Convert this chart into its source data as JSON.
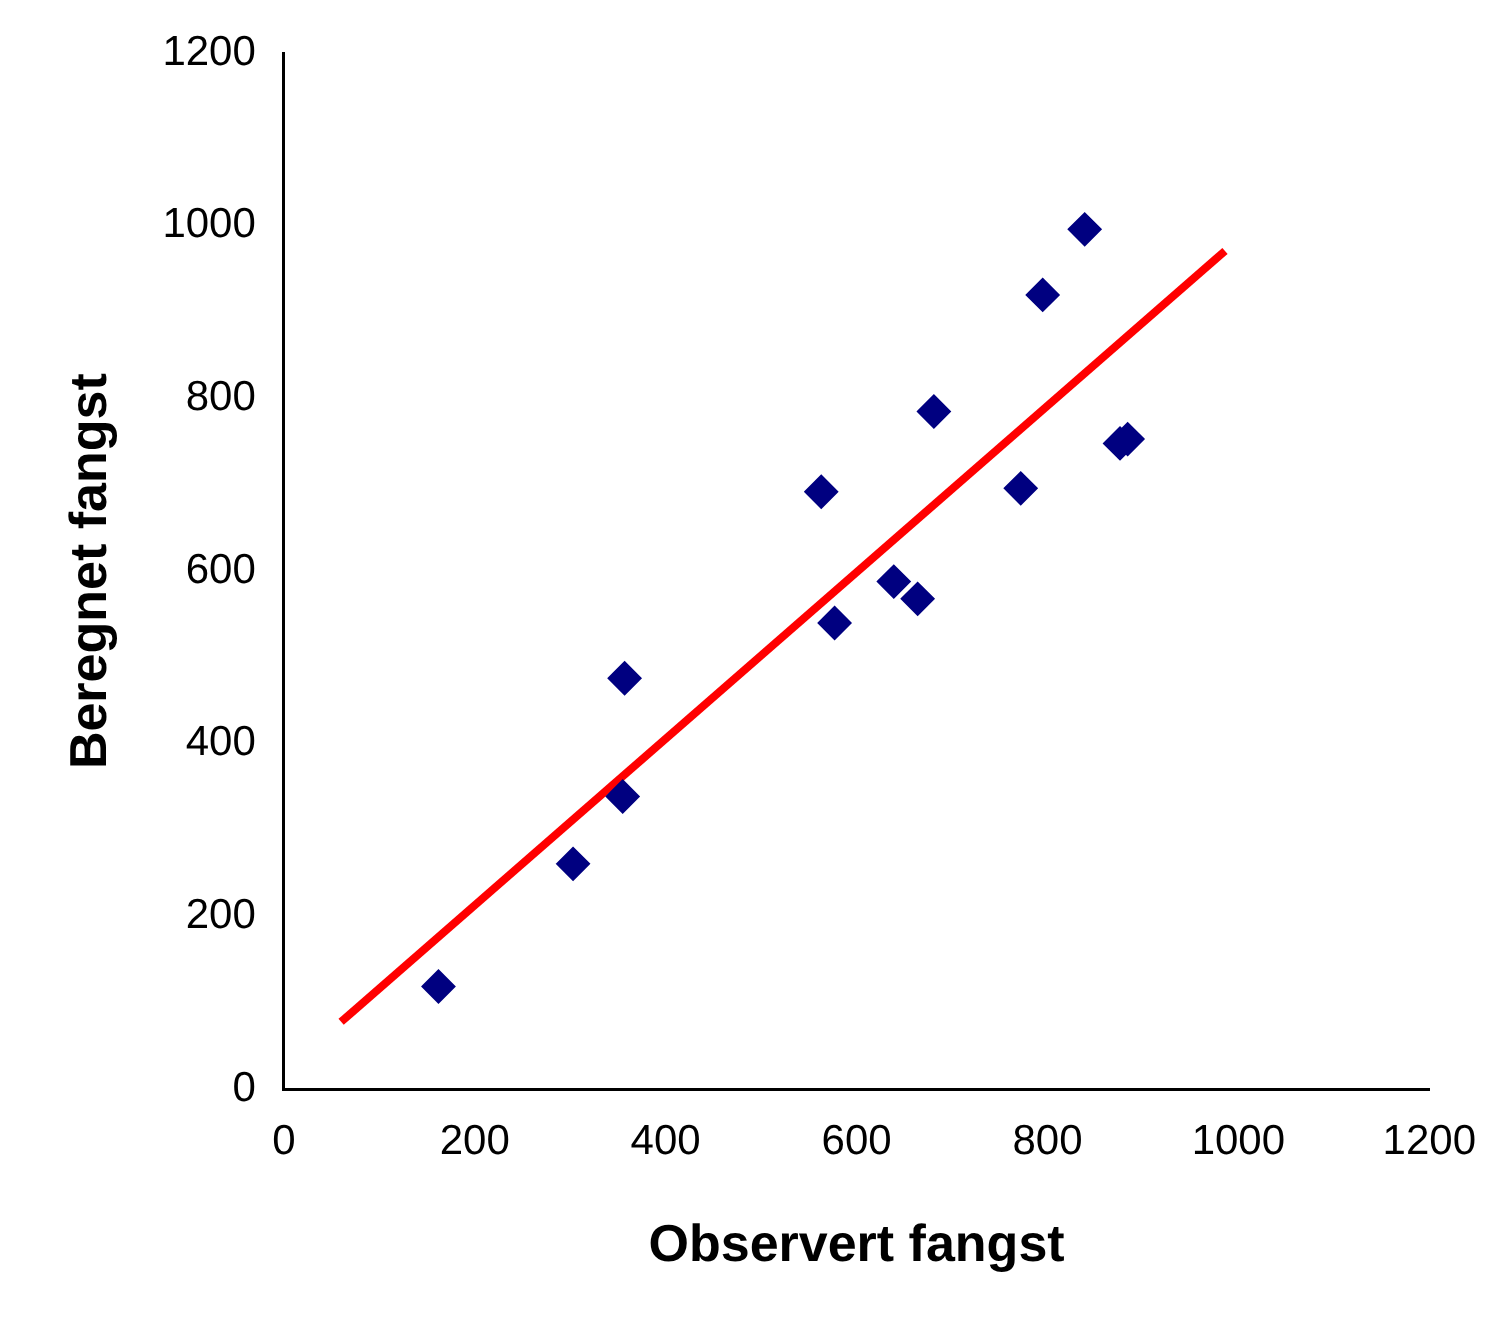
{
  "chart_data": {
    "type": "scatter",
    "xlabel": "Observert fangst",
    "ylabel": "Beregnet fangst",
    "xlim": [
      0,
      1200
    ],
    "xticks": [
      0,
      200,
      400,
      600,
      800,
      1000,
      1200
    ],
    "ylim": [
      0,
      1200
    ],
    "yticks": [
      0,
      200,
      400,
      600,
      800,
      1000,
      1200
    ],
    "grid": false,
    "legend": false,
    "marker": "diamond",
    "series": [
      {
        "type": "scatter",
        "color": "#000080",
        "x": [
          162,
          303,
          355,
          357,
          563,
          577,
          639,
          664,
          681,
          772,
          795,
          839,
          876,
          884
        ],
        "values": [
          119,
          261,
          339,
          476,
          692,
          540,
          588,
          568,
          785,
          696,
          920,
          996,
          748,
          753
        ]
      },
      {
        "type": "line",
        "color": "#ff0000",
        "marker": "none",
        "line_style": "solid",
        "x": [
          60,
          986
        ],
        "values": [
          78,
          971
        ]
      }
    ]
  }
}
